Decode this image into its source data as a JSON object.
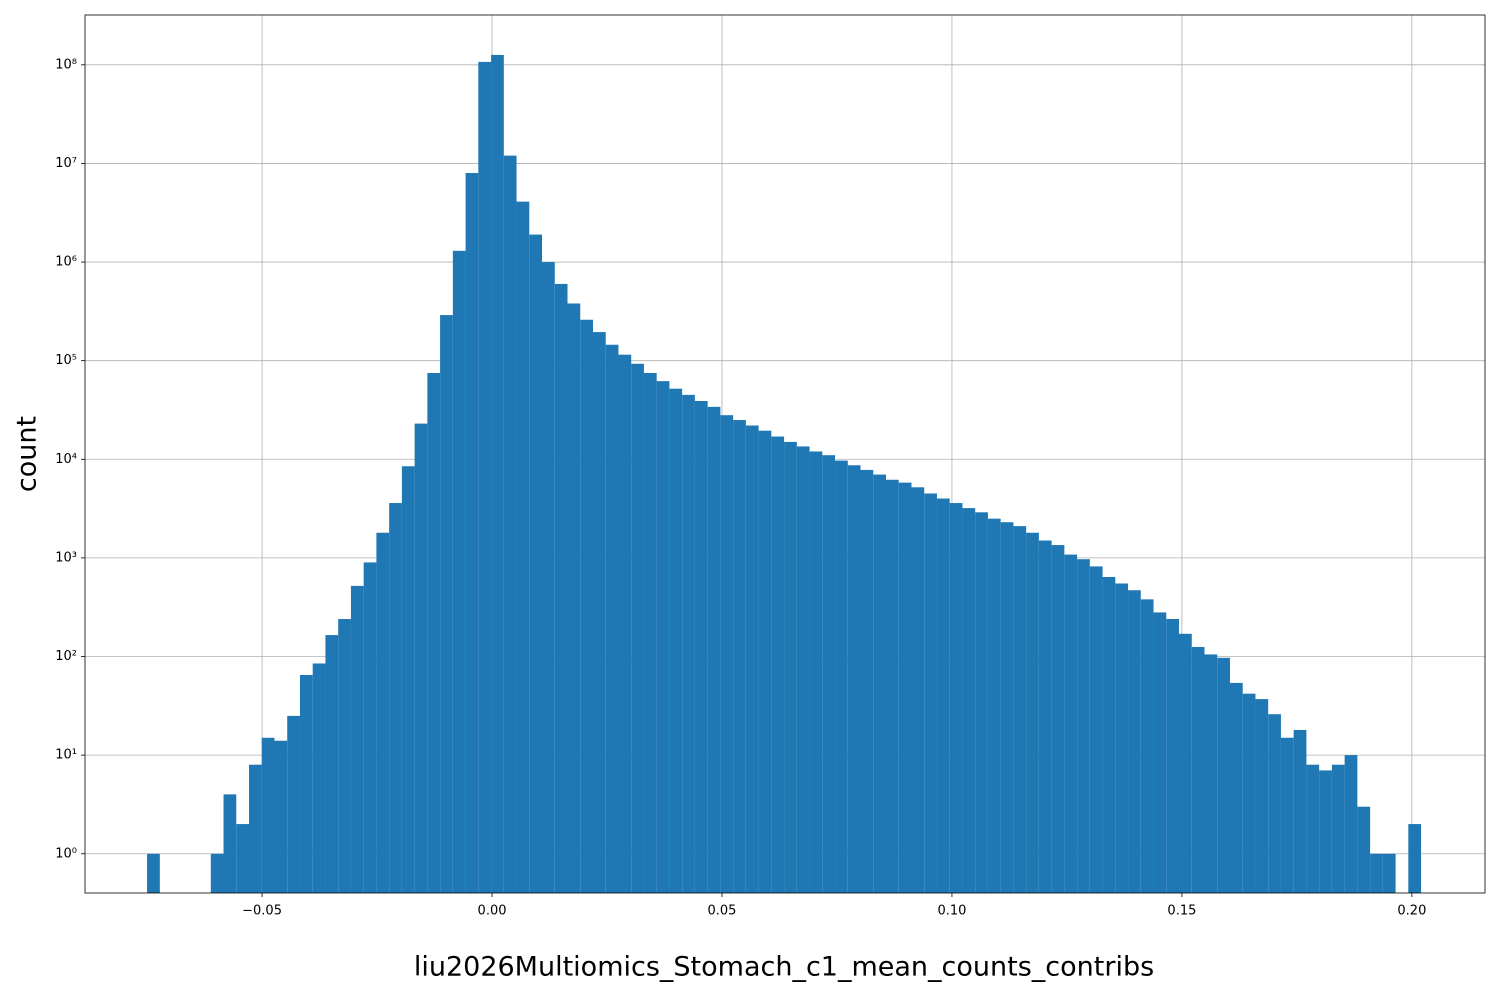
{
  "chart_data": {
    "type": "histogram",
    "xlabel": "liu2026Multiomics_Stomach_c1_mean_counts_contribs",
    "ylabel": "count",
    "color": "#1f77b4",
    "log_y": true,
    "grid": true,
    "bins": [
      -0.075,
      -0.07223,
      -0.06946,
      -0.06669,
      -0.06392,
      -0.06115,
      -0.05838,
      -0.05561,
      -0.05284,
      -0.05007,
      -0.0473,
      -0.04453,
      -0.04176,
      -0.03899,
      -0.03622,
      -0.03345,
      -0.03068,
      -0.02791,
      -0.02514,
      -0.02237,
      -0.0196,
      -0.01683,
      -0.01406,
      -0.01129,
      -0.00852,
      -0.00575,
      -0.00298,
      -0.00021,
      0.00256,
      0.00533,
      0.0081,
      0.01087,
      0.01364,
      0.01641,
      0.01918,
      0.02195,
      0.02472,
      0.02749,
      0.03026,
      0.03303,
      0.0358,
      0.03857,
      0.04134,
      0.04411,
      0.04688,
      0.04965,
      0.05242,
      0.05519,
      0.05796,
      0.06073,
      0.0635,
      0.06627,
      0.06904,
      0.07181,
      0.07458,
      0.07735,
      0.08012,
      0.08289,
      0.08566,
      0.08843,
      0.0912,
      0.09397,
      0.09674,
      0.09951,
      0.10228,
      0.10505,
      0.10782,
      0.11059,
      0.11336,
      0.11613,
      0.1189,
      0.12167,
      0.12444,
      0.12721,
      0.12998,
      0.13275,
      0.13552,
      0.13829,
      0.14106,
      0.14383,
      0.1466,
      0.14937,
      0.15214,
      0.15491,
      0.15768,
      0.16045,
      0.16322,
      0.16599,
      0.16876,
      0.17153,
      0.1743,
      0.17707,
      0.17984,
      0.18261,
      0.18538,
      0.18815,
      0.19092,
      0.19369,
      0.19646,
      0.19923,
      0.202
    ],
    "values": [
      1,
      0,
      0,
      0,
      0,
      1,
      4,
      2,
      8,
      15,
      14,
      25,
      65,
      85,
      165,
      240,
      520,
      900,
      1800,
      3600,
      8500,
      23000,
      75000,
      290000,
      1300000,
      8000000,
      107000000,
      126000000,
      12000000,
      4100000,
      1900000,
      1000000,
      600000,
      380000,
      260000,
      195000,
      145000,
      115000,
      93000,
      75000,
      62000,
      52000,
      45000,
      39000,
      34000,
      28000,
      25000,
      22000,
      19500,
      17000,
      15000,
      13500,
      12000,
      11000,
      9700,
      8700,
      7800,
      7000,
      6200,
      5800,
      5200,
      4500,
      4000,
      3600,
      3200,
      2900,
      2500,
      2300,
      2100,
      1800,
      1500,
      1350,
      1080,
      970,
      820,
      640,
      550,
      470,
      380,
      280,
      240,
      170,
      125,
      105,
      97,
      54,
      42,
      37,
      26,
      15,
      18,
      8,
      7,
      8,
      10,
      3,
      1,
      1,
      0,
      2
    ],
    "xlim": [
      -0.0885,
      0.2159
    ],
    "ylim": [
      0.4,
      320000000
    ],
    "xticks": [
      {
        "value": -0.05,
        "label": "−0.05"
      },
      {
        "value": 0,
        "label": "0.00"
      },
      {
        "value": 0.05,
        "label": "0.05"
      },
      {
        "value": 0.1,
        "label": "0.10"
      },
      {
        "value": 0.15,
        "label": "0.15"
      },
      {
        "value": 0.2,
        "label": "0.20"
      }
    ],
    "yticks": [
      {
        "value": 1,
        "label": "10⁰"
      },
      {
        "value": 10,
        "label": "10¹"
      },
      {
        "value": 100,
        "label": "10²"
      },
      {
        "value": 1000,
        "label": "10³"
      },
      {
        "value": 10000,
        "label": "10⁴"
      },
      {
        "value": 100000,
        "label": "10⁵"
      },
      {
        "value": 1000000,
        "label": "10⁶"
      },
      {
        "value": 10000000,
        "label": "10⁷"
      },
      {
        "value": 100000000,
        "label": "10⁸"
      }
    ]
  }
}
